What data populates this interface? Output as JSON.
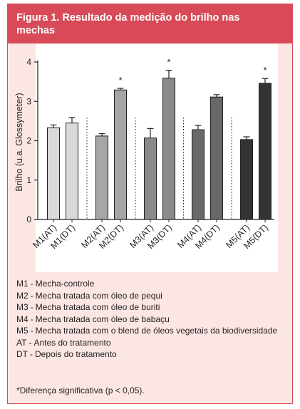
{
  "figure": {
    "title": "Figura 1. Resultado da medição do brilho nas mechas",
    "colors": {
      "header": "#d84a57",
      "panel": "#fbe6e4"
    }
  },
  "chart_data": {
    "type": "bar",
    "title": "",
    "xlabel": "",
    "ylabel": "Brilho (u.a. Glossymeter)",
    "ylim": [
      0,
      4
    ],
    "yticks": [
      "0",
      "1",
      "2",
      "3",
      "4"
    ],
    "grid": false,
    "categories": [
      "M1(AT)",
      "M1(DT)",
      "M2(AT)",
      "M2(DT)",
      "M3(AT)",
      "M3(DT)",
      "M4(AT)",
      "M4(DT)",
      "M5(AT)",
      "M5(DT)"
    ],
    "values": [
      2.33,
      2.45,
      2.12,
      3.29,
      2.07,
      3.59,
      2.28,
      3.11,
      2.03,
      3.46
    ],
    "errors": [
      0.07,
      0.14,
      0.06,
      0.04,
      0.24,
      0.2,
      0.11,
      0.06,
      0.07,
      0.12
    ],
    "significant": [
      false,
      false,
      false,
      true,
      false,
      true,
      false,
      false,
      false,
      true
    ],
    "significance_marker": "*",
    "bar_colors": [
      "#d9d9d9",
      "#d9d9d9",
      "#a6a6a8",
      "#a6a6a8",
      "#8a8a8c",
      "#8a8a8c",
      "#68686a",
      "#68686a",
      "#333333",
      "#333333"
    ]
  },
  "legend": [
    {
      "key": "M1",
      "desc": "Mecha-controle"
    },
    {
      "key": "M2",
      "desc": "Mecha tratada com óleo de pequi"
    },
    {
      "key": "M3",
      "desc": "Mecha tratada com óleo de buriti"
    },
    {
      "key": "M4",
      "desc": "Mecha tratada com óleo de babaçu"
    },
    {
      "key": "M5",
      "desc": "Mecha tratada com o blend de óleos vegetais da biodiversidade"
    },
    {
      "key": "AT",
      "desc": "Antes do tratamento"
    },
    {
      "key": "DT",
      "desc": "Depois do tratamento"
    }
  ],
  "footnote": "*Diferença significativa (p < 0,05)."
}
